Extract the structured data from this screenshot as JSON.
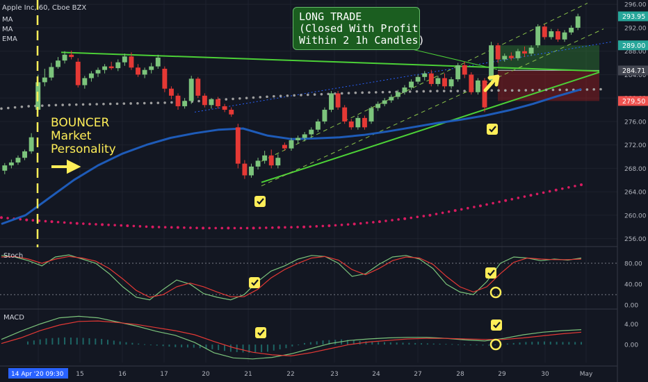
{
  "chart_data": [
    {
      "type": "candlestick",
      "title": "Apple Inc, 60, Cboe BZX",
      "indicators": [
        "MA",
        "MA",
        "EMA"
      ],
      "x_ticks": [
        "14 Apr '20 09:30",
        "15",
        "16",
        "17",
        "20",
        "21",
        "22",
        "23",
        "24",
        "27",
        "28",
        "29",
        "30",
        "May"
      ],
      "price_ticks": [
        256.0,
        260.0,
        264.0,
        268.0,
        272.0,
        276.0,
        280.0,
        284.0,
        288.0,
        292.0,
        296.0
      ],
      "ylim": [
        255,
        296.5
      ],
      "price_labels": [
        {
          "value": 293.95,
          "text": "293.95",
          "color": "#26a69a"
        },
        {
          "value": 289.0,
          "text": "289.00",
          "color": "#26a69a"
        },
        {
          "value": 284.71,
          "text": "284.71",
          "color": "#434651"
        },
        {
          "value": 279.5,
          "text": "279.50",
          "color": "#ef5350"
        }
      ],
      "candles": [
        {
          "o": 267.6,
          "h": 268.9,
          "l": 267.0,
          "c": 268.5
        },
        {
          "o": 268.5,
          "h": 269.5,
          "l": 268.0,
          "c": 269.0
        },
        {
          "o": 269.0,
          "h": 270.2,
          "l": 268.6,
          "c": 269.8
        },
        {
          "o": 269.8,
          "h": 271.2,
          "l": 269.4,
          "c": 270.9
        },
        {
          "o": 270.9,
          "h": 274.0,
          "l": 270.5,
          "c": 273.3
        },
        {
          "o": 278.0,
          "h": 284.0,
          "l": 277.6,
          "c": 282.7
        },
        {
          "o": 282.7,
          "h": 285.0,
          "l": 282.0,
          "c": 283.5
        },
        {
          "o": 283.5,
          "h": 286.0,
          "l": 283.0,
          "c": 285.3
        },
        {
          "o": 285.3,
          "h": 287.0,
          "l": 285.0,
          "c": 286.4
        },
        {
          "o": 286.4,
          "h": 288.0,
          "l": 285.9,
          "c": 287.4
        },
        {
          "o": 287.4,
          "h": 288.1,
          "l": 286.6,
          "c": 287.0
        },
        {
          "o": 286.2,
          "h": 286.8,
          "l": 281.8,
          "c": 282.2
        },
        {
          "o": 282.2,
          "h": 283.8,
          "l": 281.6,
          "c": 283.4
        },
        {
          "o": 283.4,
          "h": 284.6,
          "l": 282.8,
          "c": 284.2
        },
        {
          "o": 284.2,
          "h": 285.2,
          "l": 283.6,
          "c": 284.8
        },
        {
          "o": 284.8,
          "h": 285.8,
          "l": 284.2,
          "c": 285.4
        },
        {
          "o": 285.4,
          "h": 286.2,
          "l": 284.8,
          "c": 285.1
        },
        {
          "o": 285.1,
          "h": 286.6,
          "l": 284.6,
          "c": 286.1
        },
        {
          "o": 286.1,
          "h": 287.6,
          "l": 285.5,
          "c": 287.1
        },
        {
          "o": 287.1,
          "h": 287.8,
          "l": 284.8,
          "c": 285.2
        },
        {
          "o": 285.2,
          "h": 285.8,
          "l": 283.6,
          "c": 284.0
        },
        {
          "o": 284.0,
          "h": 285.2,
          "l": 283.4,
          "c": 284.8
        },
        {
          "o": 284.8,
          "h": 286.0,
          "l": 284.2,
          "c": 285.4
        },
        {
          "o": 285.4,
          "h": 287.4,
          "l": 285.0,
          "c": 286.9
        },
        {
          "o": 285.0,
          "h": 285.4,
          "l": 281.0,
          "c": 281.6
        },
        {
          "o": 281.6,
          "h": 282.0,
          "l": 279.8,
          "c": 280.4
        },
        {
          "o": 280.4,
          "h": 280.8,
          "l": 278.0,
          "c": 278.6
        },
        {
          "o": 278.6,
          "h": 280.0,
          "l": 278.2,
          "c": 279.5
        },
        {
          "o": 279.5,
          "h": 283.8,
          "l": 279.0,
          "c": 283.3
        },
        {
          "o": 283.3,
          "h": 283.6,
          "l": 280.0,
          "c": 280.4
        },
        {
          "o": 280.4,
          "h": 280.8,
          "l": 278.4,
          "c": 278.8
        },
        {
          "o": 278.8,
          "h": 280.0,
          "l": 278.2,
          "c": 279.8
        },
        {
          "o": 279.8,
          "h": 280.2,
          "l": 278.2,
          "c": 278.6
        },
        {
          "o": 278.6,
          "h": 279.0,
          "l": 277.6,
          "c": 278.0
        },
        {
          "o": 278.0,
          "h": 278.4,
          "l": 276.8,
          "c": 277.2
        },
        {
          "o": 275.0,
          "h": 275.6,
          "l": 268.0,
          "c": 268.8
        },
        {
          "o": 268.8,
          "h": 269.4,
          "l": 266.2,
          "c": 266.8
        },
        {
          "o": 266.8,
          "h": 268.8,
          "l": 266.4,
          "c": 268.3
        },
        {
          "o": 268.3,
          "h": 269.8,
          "l": 267.8,
          "c": 269.3
        },
        {
          "o": 269.3,
          "h": 271.0,
          "l": 268.8,
          "c": 270.2
        },
        {
          "o": 270.2,
          "h": 271.2,
          "l": 268.0,
          "c": 268.5
        },
        {
          "o": 268.5,
          "h": 270.4,
          "l": 268.0,
          "c": 269.8
        },
        {
          "o": 272.0,
          "h": 272.4,
          "l": 271.0,
          "c": 271.4
        },
        {
          "o": 271.4,
          "h": 273.2,
          "l": 271.0,
          "c": 272.8
        },
        {
          "o": 272.8,
          "h": 273.6,
          "l": 272.2,
          "c": 273.2
        },
        {
          "o": 273.2,
          "h": 274.2,
          "l": 272.6,
          "c": 273.8
        },
        {
          "o": 273.8,
          "h": 275.0,
          "l": 273.2,
          "c": 274.6
        },
        {
          "o": 274.6,
          "h": 276.4,
          "l": 274.2,
          "c": 276.0
        },
        {
          "o": 276.0,
          "h": 278.4,
          "l": 275.6,
          "c": 278.0
        },
        {
          "o": 278.0,
          "h": 281.2,
          "l": 277.6,
          "c": 280.8
        },
        {
          "o": 280.8,
          "h": 281.2,
          "l": 278.0,
          "c": 278.4
        },
        {
          "o": 278.4,
          "h": 278.8,
          "l": 275.6,
          "c": 276.0
        },
        {
          "o": 276.0,
          "h": 276.4,
          "l": 274.6,
          "c": 275.0
        },
        {
          "o": 275.0,
          "h": 277.0,
          "l": 274.6,
          "c": 276.6
        },
        {
          "o": 276.6,
          "h": 277.0,
          "l": 274.6,
          "c": 275.0
        },
        {
          "o": 276.0,
          "h": 278.6,
          "l": 275.6,
          "c": 278.3
        },
        {
          "o": 278.3,
          "h": 279.4,
          "l": 277.8,
          "c": 279.0
        },
        {
          "o": 279.0,
          "h": 280.0,
          "l": 278.6,
          "c": 279.6
        },
        {
          "o": 279.6,
          "h": 280.6,
          "l": 279.2,
          "c": 280.2
        },
        {
          "o": 280.2,
          "h": 281.4,
          "l": 279.8,
          "c": 281.0
        },
        {
          "o": 281.0,
          "h": 282.2,
          "l": 280.6,
          "c": 281.8
        },
        {
          "o": 281.8,
          "h": 283.2,
          "l": 281.4,
          "c": 282.8
        },
        {
          "o": 282.8,
          "h": 284.0,
          "l": 282.4,
          "c": 283.6
        },
        {
          "o": 283.6,
          "h": 284.6,
          "l": 283.0,
          "c": 284.2
        },
        {
          "o": 284.2,
          "h": 284.8,
          "l": 282.0,
          "c": 282.4
        },
        {
          "o": 282.4,
          "h": 283.8,
          "l": 282.0,
          "c": 283.4
        },
        {
          "o": 283.4,
          "h": 284.2,
          "l": 281.6,
          "c": 282.0
        },
        {
          "o": 282.0,
          "h": 283.6,
          "l": 281.6,
          "c": 283.2
        },
        {
          "o": 283.2,
          "h": 286.0,
          "l": 282.8,
          "c": 285.6
        },
        {
          "o": 285.6,
          "h": 286.2,
          "l": 283.4,
          "c": 284.0
        },
        {
          "o": 284.0,
          "h": 284.4,
          "l": 280.6,
          "c": 281.0
        },
        {
          "o": 281.0,
          "h": 283.4,
          "l": 280.6,
          "c": 283.0
        },
        {
          "o": 283.0,
          "h": 283.4,
          "l": 277.6,
          "c": 278.4
        },
        {
          "o": 283.0,
          "h": 289.6,
          "l": 282.6,
          "c": 289.0
        },
        {
          "o": 289.0,
          "h": 289.4,
          "l": 286.0,
          "c": 286.6
        },
        {
          "o": 286.6,
          "h": 287.6,
          "l": 286.2,
          "c": 287.2
        },
        {
          "o": 287.2,
          "h": 287.8,
          "l": 286.4,
          "c": 286.8
        },
        {
          "o": 286.8,
          "h": 288.4,
          "l": 286.4,
          "c": 288.0
        },
        {
          "o": 288.0,
          "h": 288.8,
          "l": 287.0,
          "c": 287.6
        },
        {
          "o": 287.6,
          "h": 289.0,
          "l": 287.2,
          "c": 288.6
        },
        {
          "o": 289.0,
          "h": 292.6,
          "l": 288.6,
          "c": 292.2
        },
        {
          "o": 292.2,
          "h": 292.6,
          "l": 290.0,
          "c": 290.4
        },
        {
          "o": 290.4,
          "h": 291.8,
          "l": 290.0,
          "c": 291.4
        },
        {
          "o": 291.4,
          "h": 291.8,
          "l": 289.6,
          "c": 290.0
        },
        {
          "o": 290.0,
          "h": 291.6,
          "l": 289.6,
          "c": 291.2
        },
        {
          "o": 291.2,
          "h": 292.4,
          "l": 290.8,
          "c": 292.0
        },
        {
          "o": 292.0,
          "h": 294.4,
          "l": 291.6,
          "c": 293.95
        }
      ],
      "ma_long": [
        259.6,
        259.2,
        258.9,
        258.6,
        258.4,
        258.2,
        258.0,
        257.9,
        257.8,
        257.8,
        257.8,
        257.9,
        258.0,
        258.2,
        258.5,
        258.9,
        259.4,
        260.0,
        260.8,
        261.6,
        262.5,
        263.4,
        264.3,
        265.2
      ],
      "ma_mid": [
        278.2,
        278.6,
        278.8,
        278.9,
        279.0,
        279.1,
        279.2,
        279.4,
        279.7,
        280.0,
        280.3,
        280.5,
        280.7,
        280.9,
        281.0,
        281.1,
        281.2,
        281.2,
        281.3,
        281.3,
        281.4,
        281.4,
        281.5
      ],
      "ema": [
        258.5,
        260.0,
        263.0,
        266.0,
        268.5,
        270.5,
        272.0,
        273.2,
        274.0,
        274.6,
        274.8,
        273.6,
        273.0,
        273.1,
        273.3,
        273.7,
        274.3,
        275.0,
        275.7,
        276.3,
        277.0,
        277.9,
        279.0,
        280.3,
        281.5
      ],
      "annotations": [
        {
          "type": "text",
          "text": "BOUNCER Market Personality"
        },
        {
          "type": "text",
          "text": "LONG TRADE (Closed With Profit Within 2 1h Candles)"
        },
        {
          "type": "long_position",
          "entry": 284.71,
          "target": 289.0,
          "stop": 279.5
        }
      ]
    },
    {
      "type": "line",
      "title": "Stoch",
      "y_ticks": [
        0.0,
        40.0,
        80.0
      ],
      "ylim": [
        -5,
        108
      ],
      "series": [
        {
          "name": "%K",
          "color": "#7cc47c",
          "values": [
            95,
            92,
            85,
            75,
            92,
            96,
            88,
            80,
            60,
            35,
            15,
            10,
            30,
            48,
            40,
            22,
            15,
            10,
            20,
            45,
            65,
            75,
            88,
            95,
            93,
            80,
            55,
            60,
            78,
            92,
            95,
            88,
            70,
            40,
            25,
            20,
            45,
            80,
            92,
            90,
            85,
            88,
            86,
            90
          ]
        },
        {
          "name": "%D",
          "color": "#e53935",
          "values": [
            92,
            93,
            88,
            80,
            88,
            93,
            90,
            84,
            70,
            50,
            28,
            15,
            20,
            35,
            42,
            35,
            25,
            16,
            16,
            30,
            52,
            68,
            80,
            90,
            93,
            86,
            68,
            58,
            70,
            85,
            92,
            90,
            78,
            55,
            35,
            25,
            35,
            60,
            82,
            90,
            88,
            87,
            87,
            88
          ]
        }
      ]
    },
    {
      "type": "line",
      "title": "MACD",
      "y_ticks": [
        0.0,
        4.0
      ],
      "ylim": [
        -3.5,
        6.5
      ],
      "series": [
        {
          "name": "MACD",
          "color": "#7cc47c",
          "values": [
            1.0,
            2.6,
            4.0,
            5.2,
            5.5,
            5.2,
            4.4,
            3.6,
            2.6,
            1.8,
            0.4,
            -1.6,
            -2.6,
            -2.8,
            -2.5,
            -1.8,
            -0.8,
            0.2,
            0.8,
            1.1,
            1.3,
            1.4,
            1.4,
            1.2,
            0.9,
            0.7,
            1.2,
            1.9,
            2.4,
            2.7,
            2.9
          ]
        },
        {
          "name": "Signal",
          "color": "#e53935",
          "values": [
            0.2,
            1.3,
            2.7,
            3.8,
            4.5,
            4.6,
            4.3,
            3.9,
            3.3,
            2.7,
            1.9,
            0.6,
            -0.6,
            -1.5,
            -2.0,
            -2.2,
            -1.6,
            -0.8,
            0.0,
            0.5,
            0.8,
            1.1,
            1.2,
            1.2,
            1.1,
            1.0,
            1.0,
            1.3,
            1.7,
            2.1,
            2.4
          ]
        }
      ],
      "histogram": [
        0.6,
        1.2,
        1.4,
        1.3,
        1.1,
        0.6,
        0.2,
        -0.2,
        -0.5,
        -0.6,
        -0.9,
        -1.4,
        -1.6,
        -1.4,
        -0.7,
        0.3,
        0.8,
        1.0,
        0.7,
        0.5,
        0.4,
        0.3,
        0.2,
        0.1,
        -0.1,
        -0.2,
        0.2,
        0.5,
        0.6,
        0.5,
        0.5
      ]
    }
  ],
  "legend": {
    "symbol": "Apple Inc, 60, Cboe BZX",
    "ma1": "MA",
    "ma2": "MA",
    "ema": "EMA",
    "stoch": "Stoch",
    "macd": "MACD"
  },
  "annotations": {
    "bouncer_line1": "BOUNCER",
    "bouncer_line2": "Market",
    "bouncer_line3": "Personality",
    "trade_line1": "LONG TRADE",
    "trade_line2": "(Closed With Profit",
    "trade_line3": "Within 2 1h Candles)"
  },
  "colors": {
    "background": "#131722",
    "up": "#7cc47c",
    "down": "#e53935",
    "ema": "#1e5bb8",
    "trendline": "#4cd137",
    "note": "#ffee58",
    "ma_long": "#d81b60",
    "ma_mid": "#9e9e9e"
  }
}
